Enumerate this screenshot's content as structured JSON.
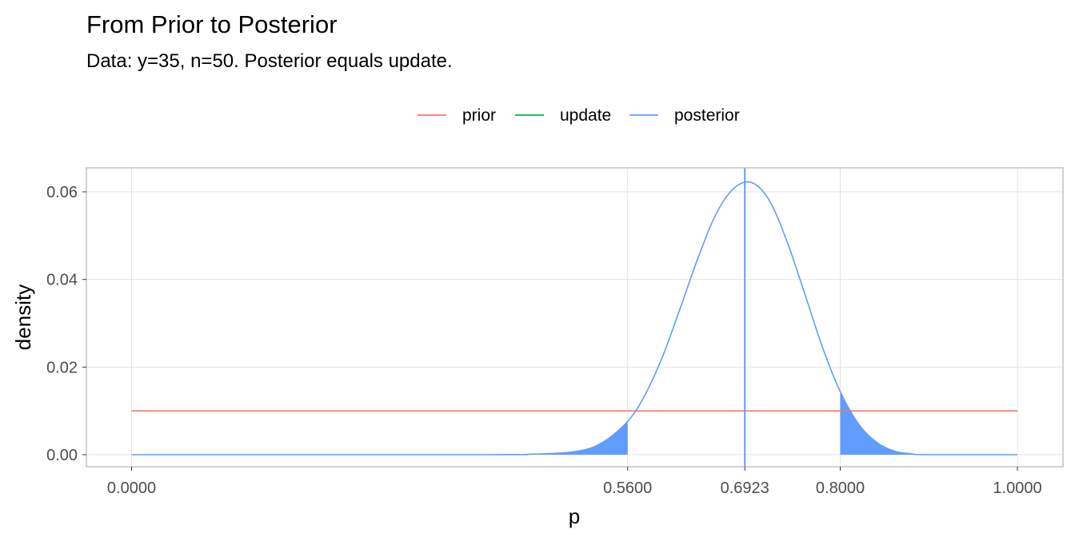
{
  "chart_data": {
    "type": "line",
    "title": "From Prior to Posterior",
    "subtitle": "Data: y=35, n=50. Posterior equals update.",
    "xlabel": "p",
    "ylabel": "density",
    "xlim": [
      0,
      1
    ],
    "ylim": [
      0,
      0.065
    ],
    "x_ticks": [
      0.0,
      0.56,
      0.6923,
      0.8,
      1.0
    ],
    "x_tick_labels": [
      "0.0000",
      "0.5600",
      "0.6923",
      "0.8000",
      "1.0000"
    ],
    "y_ticks": [
      0.0,
      0.02,
      0.04,
      0.06
    ],
    "y_tick_labels": [
      "0.00",
      "0.02",
      "0.04",
      "0.06"
    ],
    "grid": true,
    "legend_position": "top",
    "legend": [
      {
        "name": "prior",
        "color": "#F8766D"
      },
      {
        "name": "update",
        "color": "#00BA38"
      },
      {
        "name": "posterior",
        "color": "#619CFF"
      }
    ],
    "series": [
      {
        "name": "prior",
        "color": "#F8766D",
        "x": [
          0.0,
          1.0
        ],
        "values": [
          0.01,
          0.01
        ]
      },
      {
        "name": "posterior",
        "color": "#619CFF",
        "x": [
          0.0,
          0.4,
          0.45,
          0.5,
          0.53,
          0.56,
          0.58,
          0.6,
          0.62,
          0.64,
          0.66,
          0.68,
          0.7,
          0.72,
          0.74,
          0.76,
          0.78,
          0.8,
          0.82,
          0.84,
          0.86,
          0.88,
          0.9,
          1.0
        ],
        "values": [
          0.0,
          0.0,
          0.0001,
          0.0007,
          0.0026,
          0.0076,
          0.0138,
          0.0227,
          0.0338,
          0.0452,
          0.055,
          0.0608,
          0.0621,
          0.058,
          0.0486,
          0.0367,
          0.0245,
          0.0144,
          0.0072,
          0.003,
          0.0009,
          0.0002,
          0.0,
          0.0
        ]
      }
    ],
    "shaded_regions": [
      {
        "from": 0.0,
        "to": 0.56,
        "series": "posterior",
        "color": "#619CFF"
      },
      {
        "from": 0.8,
        "to": 1.0,
        "series": "posterior",
        "color": "#619CFF"
      }
    ],
    "vline": {
      "x": 0.6923,
      "color": "#619CFF"
    }
  }
}
